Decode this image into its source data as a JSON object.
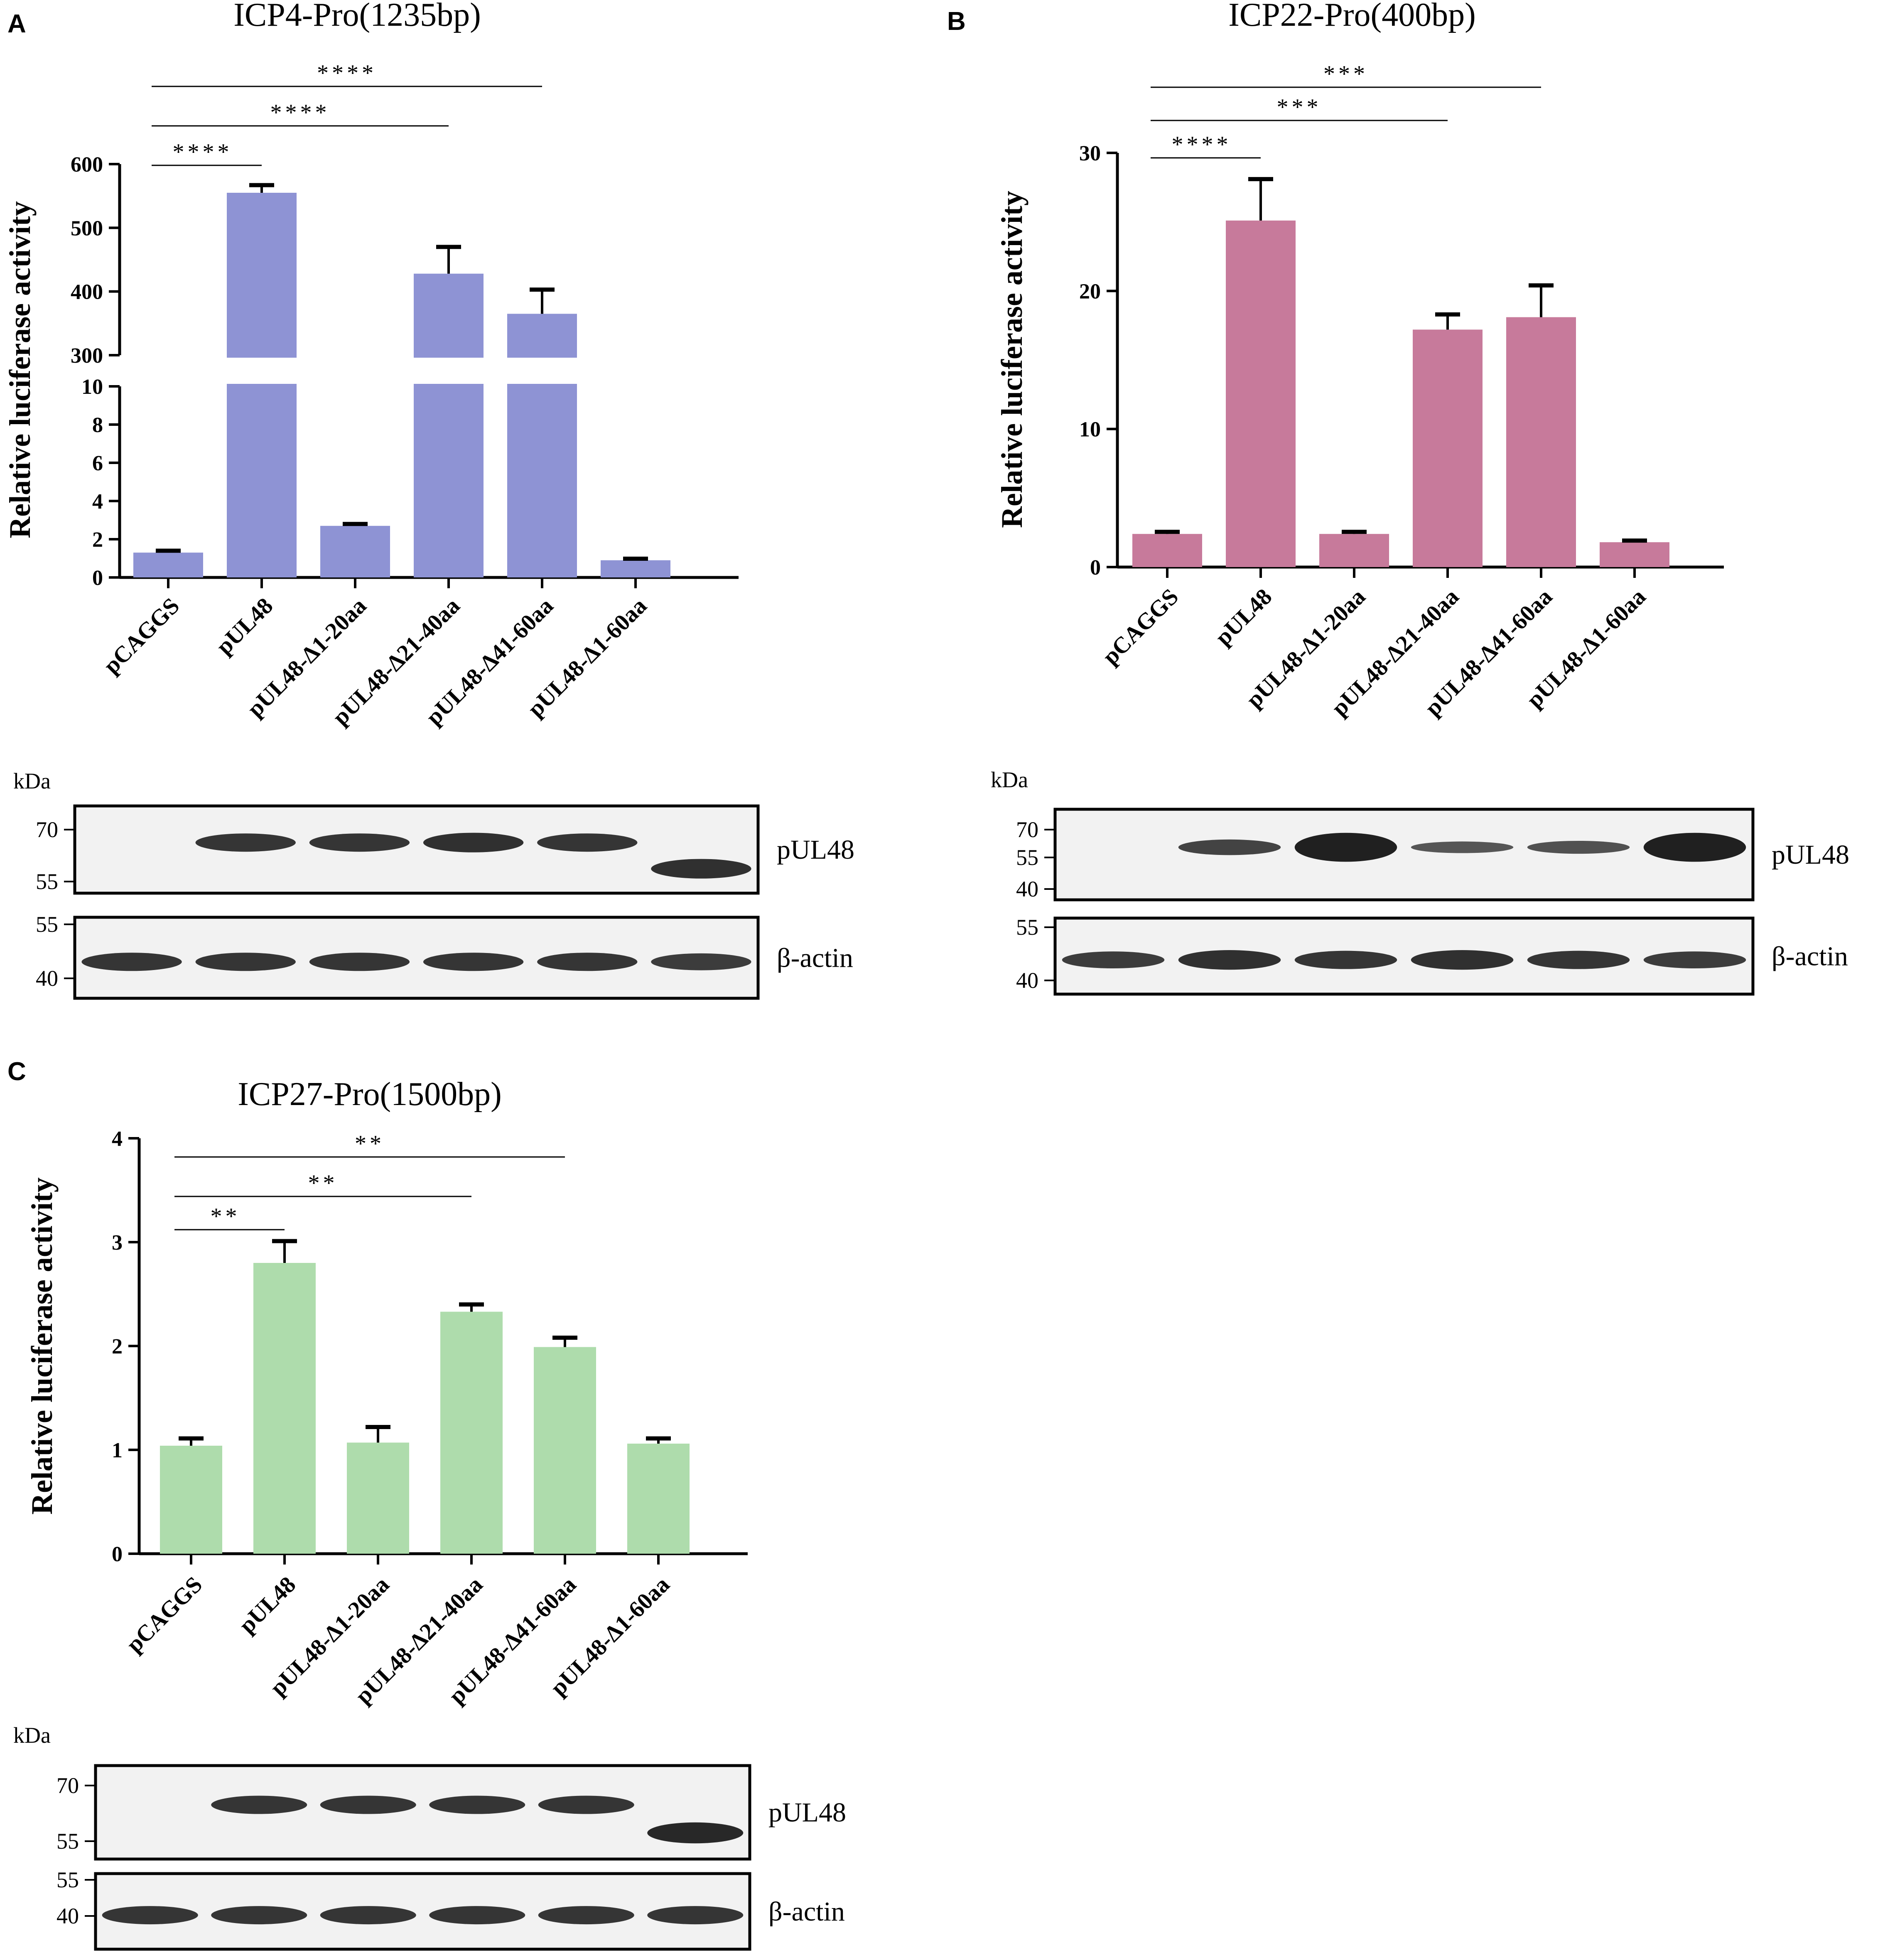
{
  "panels": [
    {
      "letter": "A",
      "chart_data": {
        "type": "bar",
        "title": "ICP4-Pro(1235bp)",
        "xlabel": "",
        "ylabel": "Relative luciferase activity",
        "categories": [
          "pCAGGS",
          "pUL48",
          "pUL48-Δ1-20aa",
          "pUL48-Δ21-40aa",
          "pUL48-Δ41-60aa",
          "pUL48-Δ1-60aa"
        ],
        "series": [
          {
            "values": [
              1.3,
              555,
              2.7,
              428,
              365,
              0.9
            ],
            "errors": [
              0.1,
              12,
              0.1,
              42,
              38,
              0.08
            ]
          }
        ],
        "broken_axis": {
          "lower": {
            "range": [
              0,
              10
            ],
            "ticks": [
              0,
              2,
              4,
              6,
              8,
              10
            ]
          },
          "upper": {
            "range": [
              300,
              600
            ],
            "ticks": [
              300,
              400,
              500,
              600
            ]
          }
        },
        "color": "#8e93d4",
        "significance": [
          {
            "from": 0,
            "to": 1,
            "label": "****"
          },
          {
            "from": 0,
            "to": 3,
            "label": "****"
          },
          {
            "from": 0,
            "to": 4,
            "label": "****"
          }
        ]
      },
      "blot": {
        "kda_label": "kDa",
        "rows": [
          {
            "name": "pUL48",
            "markers": [
              "70",
              "55"
            ]
          },
          {
            "name": "β-actin",
            "markers": [
              "55",
              "40"
            ]
          }
        ]
      }
    },
    {
      "letter": "B",
      "chart_data": {
        "type": "bar",
        "title": "ICP22-Pro(400bp)",
        "xlabel": "",
        "ylabel": "Relative luciferase activity",
        "categories": [
          "pCAGGS",
          "pUL48",
          "pUL48-Δ1-20aa",
          "pUL48-Δ21-40aa",
          "pUL48-Δ41-60aa",
          "pUL48-Δ1-60aa"
        ],
        "series": [
          {
            "values": [
              2.4,
              25.1,
              2.4,
              17.2,
              18.1,
              1.8
            ],
            "errors": [
              0.15,
              3.0,
              0.15,
              1.1,
              2.3,
              0.12
            ]
          }
        ],
        "ylim": [
          0,
          30
        ],
        "yticks": [
          0,
          10,
          20,
          30
        ],
        "color": "#c77a9b",
        "significance": [
          {
            "from": 0,
            "to": 1,
            "label": "****"
          },
          {
            "from": 0,
            "to": 3,
            "label": "***"
          },
          {
            "from": 0,
            "to": 4,
            "label": "***"
          }
        ]
      },
      "blot": {
        "kda_label": "kDa",
        "rows": [
          {
            "name": "pUL48",
            "markers": [
              "70",
              "55",
              "40"
            ]
          },
          {
            "name": "β-actin",
            "markers": [
              "55",
              "40"
            ]
          }
        ]
      }
    },
    {
      "letter": "C",
      "chart_data": {
        "type": "bar",
        "title": "ICP27-Pro(1500bp)",
        "xlabel": "",
        "ylabel": "Relative luciferase activity",
        "categories": [
          "pCAGGS",
          "pUL48",
          "pUL48-Δ1-20aa",
          "pUL48-Δ21-40aa",
          "pUL48-Δ41-60aa",
          "pUL48-Δ1-60aa"
        ],
        "series": [
          {
            "values": [
              1.04,
              2.8,
              1.07,
              2.33,
              1.99,
              1.06
            ],
            "errors": [
              0.07,
              0.21,
              0.15,
              0.07,
              0.09,
              0.05
            ]
          }
        ],
        "ylim": [
          0,
          4
        ],
        "yticks": [
          0,
          1,
          2,
          3,
          4
        ],
        "color": "#aedcac",
        "significance": [
          {
            "from": 0,
            "to": 1,
            "label": "**"
          },
          {
            "from": 0,
            "to": 3,
            "label": "**"
          },
          {
            "from": 0,
            "to": 4,
            "label": "**"
          }
        ]
      },
      "blot": {
        "kda_label": "kDa",
        "rows": [
          {
            "name": "pUL48",
            "markers": [
              "70",
              "55"
            ]
          },
          {
            "name": "β-actin",
            "markers": [
              "55",
              "40"
            ]
          }
        ]
      }
    }
  ]
}
